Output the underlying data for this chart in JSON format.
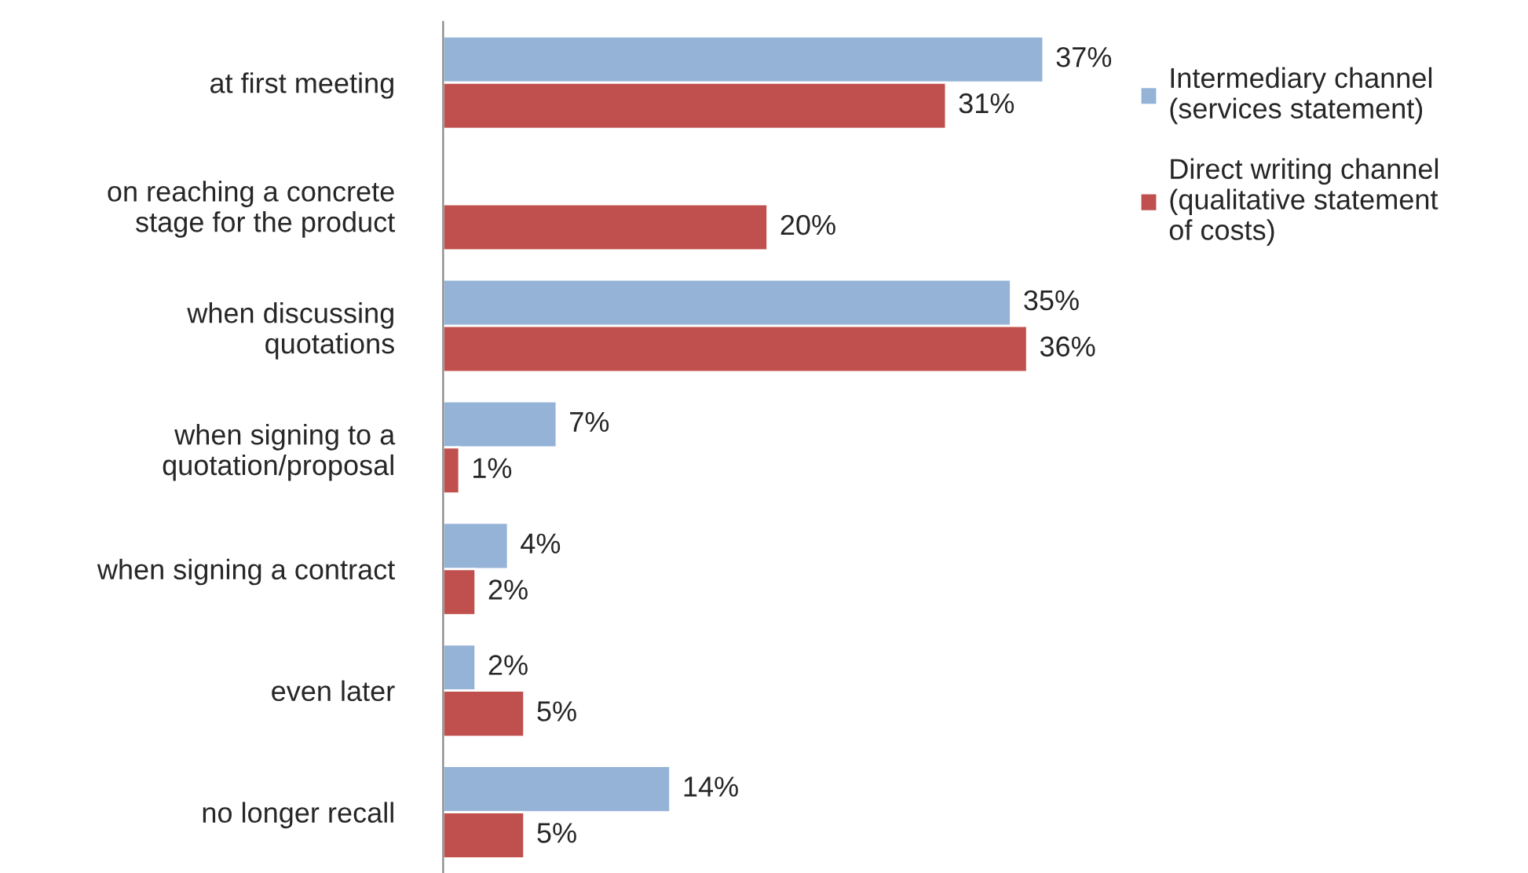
{
  "chart_data": {
    "type": "bar",
    "orientation": "horizontal",
    "legend": "right",
    "categories": [
      "at first meeting",
      "on reaching a concrete\nstage for the product",
      "when discussing\nquotations",
      "when signing to a\nquotation/proposal",
      "when signing a contract",
      "even later",
      "no longer recall"
    ],
    "series": [
      {
        "name": "Intermediary channel\n(services statement)",
        "color": "#95b3d7",
        "values": [
          37,
          null,
          35,
          7,
          4,
          2,
          14
        ],
        "value_labels": [
          "37%",
          null,
          "35%",
          "7%",
          "4%",
          "2%",
          "14%"
        ]
      },
      {
        "name": "Direct writing channel\n(qualitative statement\nof costs)",
        "color": "#c0504d",
        "values": [
          31,
          20,
          36,
          1,
          2,
          5,
          5
        ],
        "value_labels": [
          "31%",
          "20%",
          "36%",
          "1%",
          "2%",
          "5%",
          "5%"
        ]
      }
    ]
  }
}
